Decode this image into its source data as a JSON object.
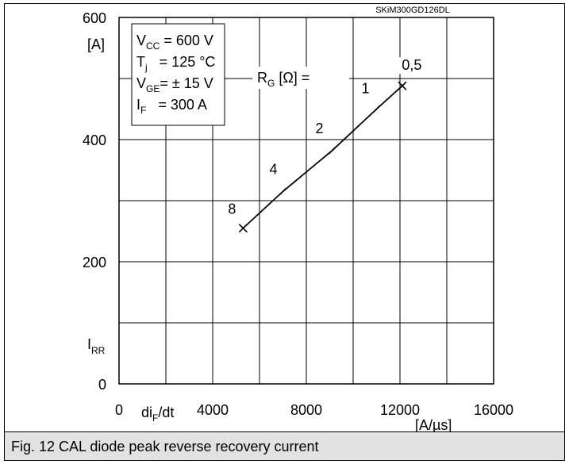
{
  "header_code": "SKiM300GD126DL",
  "caption": "Fig. 12 CAL diode peak reverse recovery current",
  "chart_data": {
    "type": "line",
    "title": "",
    "xlabel": "di_F/dt",
    "xunit": "[A/µs]",
    "ylabel": "I_RR",
    "yunit": "[A]",
    "xlim": [
      0,
      16000
    ],
    "ylim": [
      0,
      600
    ],
    "grid": true,
    "x_ticks": [
      "0",
      "4000",
      "8000",
      "12000",
      "16000"
    ],
    "y_ticks": [
      "0",
      "200",
      "400",
      "600"
    ],
    "conditions": [
      {
        "main": "V",
        "sub": "CC",
        "rest": " = 600 V"
      },
      {
        "main": "T",
        "sub": "j",
        "rest": "   = 125 °C"
      },
      {
        "main": "V",
        "sub": "GE",
        "rest": "= ± 15 V"
      },
      {
        "main": "I",
        "sub": "F",
        "rest": "   = 300 A"
      }
    ],
    "param_label": {
      "main": "R",
      "sub": "G",
      "rest": " [Ω] ="
    },
    "series": [
      {
        "points": [
          {
            "x": 5300,
            "y": 255,
            "label": "8"
          },
          {
            "x": 7000,
            "y": 315,
            "label": "4"
          },
          {
            "x": 9100,
            "y": 382,
            "label": "2"
          },
          {
            "x": 11000,
            "y": 450,
            "label": "1"
          },
          {
            "x": 12100,
            "y": 488,
            "label": "0,5"
          }
        ]
      }
    ]
  }
}
